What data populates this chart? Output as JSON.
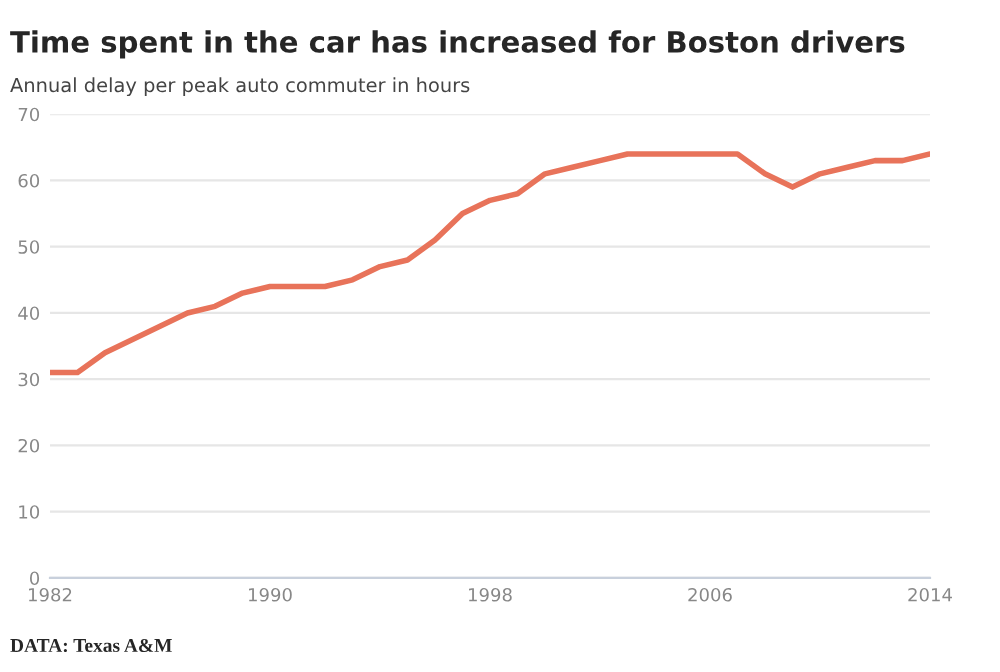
{
  "chart_data": {
    "type": "line",
    "title": "Time spent in the car has increased for Boston drivers",
    "subtitle": "Annual delay per peak auto commuter in hours",
    "x": [
      1982,
      1983,
      1984,
      1985,
      1986,
      1987,
      1988,
      1989,
      1990,
      1991,
      1992,
      1993,
      1994,
      1995,
      1996,
      1997,
      1998,
      1999,
      2000,
      2001,
      2002,
      2003,
      2004,
      2005,
      2006,
      2007,
      2008,
      2009,
      2010,
      2011,
      2012,
      2013,
      2014
    ],
    "series": [
      {
        "color": "#e8735a",
        "values": [
          31,
          31,
          34,
          36,
          38,
          40,
          41,
          43,
          44,
          44,
          44,
          45,
          47,
          48,
          51,
          55,
          57,
          58,
          61,
          62,
          63,
          64,
          64,
          64,
          64,
          64,
          61,
          59,
          61,
          62,
          63,
          63,
          64
        ]
      }
    ],
    "xlim": [
      1982,
      2014
    ],
    "xticks": [
      1982,
      1990,
      1998,
      2006,
      2014
    ],
    "ylim": [
      0,
      70
    ],
    "yticks": [
      0,
      10,
      20,
      30,
      40,
      50,
      60,
      70
    ],
    "grid": "y",
    "marker": "none",
    "line_style": "solid",
    "annotations": [
      "DATA: Texas A&M"
    ]
  }
}
